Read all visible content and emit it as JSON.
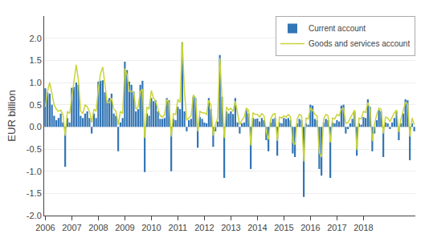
{
  "chart_data": {
    "type": "bar",
    "ylabel": "EUR billion",
    "categories": [
      "2006",
      null,
      null,
      null,
      null,
      null,
      null,
      null,
      null,
      null,
      null,
      null,
      "2007",
      null,
      null,
      null,
      null,
      null,
      null,
      null,
      null,
      null,
      null,
      null,
      "2008",
      null,
      null,
      null,
      null,
      null,
      null,
      null,
      null,
      null,
      null,
      null,
      "2009",
      null,
      null,
      null,
      null,
      null,
      null,
      null,
      null,
      null,
      null,
      null,
      "2010",
      null,
      null,
      null,
      null,
      null,
      null,
      null,
      null,
      null,
      null,
      null,
      "2011",
      null,
      null,
      null,
      null,
      null,
      null,
      null,
      null,
      null,
      null,
      null,
      "2012",
      null,
      null,
      null,
      null,
      null,
      null,
      null,
      null,
      null,
      null,
      null,
      "2013",
      null,
      null,
      null,
      null,
      null,
      null,
      null,
      null,
      null,
      null,
      null,
      "2014",
      null,
      null,
      null,
      null,
      null,
      null,
      null,
      null,
      null,
      null,
      null,
      "2015",
      null,
      null,
      null,
      null,
      null,
      null,
      null,
      null,
      null,
      null,
      null,
      "2016",
      null,
      null,
      null,
      null,
      null,
      null,
      null,
      null,
      null,
      null,
      null,
      "2017",
      null,
      null,
      null,
      null,
      null,
      null,
      null,
      null,
      null,
      null,
      null,
      "2018",
      null,
      null,
      null,
      null,
      null,
      null,
      null,
      null,
      null,
      null,
      null,
      null,
      null,
      null,
      null,
      null,
      null,
      null,
      null,
      null,
      null,
      null,
      null
    ],
    "series": [
      {
        "name": "Current account",
        "type": "bar",
        "color": "#3375b5",
        "values": [
          0.87,
          0.78,
          0.75,
          0.5,
          0.25,
          0.15,
          0.2,
          0.3,
          0.1,
          -0.9,
          0.2,
          0.1,
          0.88,
          0.9,
          1.0,
          0.95,
          0.25,
          0.2,
          0.3,
          0.35,
          0.2,
          -0.15,
          0.3,
          0.2,
          1.02,
          1.04,
          1.05,
          0.78,
          0.6,
          0.65,
          0.75,
          0.3,
          0.25,
          -0.55,
          0.1,
          0.2,
          1.47,
          1.28,
          1.02,
          0.95,
          0.8,
          0.35,
          0.4,
          0.95,
          1.04,
          -1.02,
          0.3,
          0.25,
          0.65,
          0.58,
          0.6,
          0.35,
          0.18,
          0.18,
          0.2,
          0.65,
          0.6,
          -1.0,
          0.18,
          0.15,
          0.45,
          0.4,
          1.9,
          0.35,
          -0.1,
          0.15,
          0.18,
          0.68,
          0.65,
          -0.47,
          0.22,
          0.18,
          0.1,
          0.08,
          0.65,
          0.4,
          -0.45,
          -0.1,
          0.12,
          1.62,
          0.68,
          -1.15,
          0.35,
          0.3,
          0.35,
          0.29,
          0.65,
          0.1,
          -0.15,
          0.08,
          0.1,
          0.38,
          0.3,
          -0.95,
          0.2,
          0.18,
          0.19,
          0.12,
          0.2,
          0.15,
          -0.3,
          -0.55,
          0.1,
          0.18,
          0.2,
          -0.65,
          0.1,
          0.08,
          0.2,
          0.18,
          0.2,
          0.15,
          -0.6,
          -0.68,
          0.08,
          0.18,
          0.15,
          -1.58,
          0.08,
          0.05,
          0.5,
          0.48,
          0.18,
          0.15,
          -0.95,
          -1.1,
          0.1,
          0.18,
          0.15,
          -1.15,
          0.1,
          0.08,
          0.15,
          0.12,
          0.48,
          0.5,
          -0.15,
          -0.05,
          0.08,
          0.18,
          0.35,
          -0.65,
          0.08,
          0.05,
          0.22,
          0.2,
          0.62,
          0.45,
          -0.55,
          -0.15,
          0.15,
          0.38,
          0.35,
          -0.68,
          0.1,
          0.08,
          -0.05,
          0.1,
          0.2,
          0.35,
          -0.3,
          0.08,
          0.3,
          0.62,
          0.6,
          -0.75,
          0.08,
          -0.1
        ]
      },
      {
        "name": "Goods and services account",
        "type": "line",
        "color": "#c8d439",
        "values": [
          0.45,
          0.8,
          1.0,
          0.75,
          0.5,
          0.4,
          0.35,
          0.38,
          0.28,
          -0.2,
          0.35,
          0.3,
          0.7,
          1.05,
          1.4,
          1.05,
          0.35,
          0.3,
          0.5,
          0.45,
          0.35,
          0.1,
          0.4,
          0.35,
          0.85,
          1.2,
          1.35,
          0.95,
          0.55,
          0.55,
          0.65,
          0.4,
          0.35,
          0.05,
          0.35,
          0.3,
          1.32,
          1.18,
          0.8,
          0.8,
          0.78,
          0.4,
          0.45,
          0.8,
          0.85,
          -0.25,
          0.45,
          0.4,
          0.82,
          0.65,
          0.58,
          0.4,
          0.25,
          0.22,
          0.28,
          0.62,
          0.55,
          -0.22,
          0.3,
          0.28,
          0.62,
          0.55,
          1.92,
          0.78,
          0.15,
          0.2,
          0.25,
          0.72,
          0.65,
          -0.1,
          0.35,
          0.32,
          0.32,
          0.28,
          0.6,
          0.48,
          -0.2,
          0.05,
          0.2,
          1.55,
          0.68,
          -0.25,
          0.45,
          0.38,
          0.42,
          0.35,
          0.58,
          0.28,
          0.05,
          0.15,
          0.22,
          0.42,
          0.38,
          -0.42,
          0.32,
          0.28,
          0.28,
          0.22,
          0.3,
          0.25,
          -0.1,
          -0.28,
          0.18,
          0.28,
          0.3,
          -0.32,
          0.22,
          0.2,
          0.25,
          0.22,
          0.28,
          0.22,
          -0.35,
          -0.4,
          0.18,
          0.28,
          0.25,
          -0.78,
          0.2,
          0.18,
          0.42,
          0.38,
          0.28,
          0.25,
          -0.58,
          -0.68,
          0.18,
          0.28,
          0.25,
          -0.35,
          0.2,
          0.18,
          0.28,
          0.25,
          0.4,
          0.42,
          0.08,
          0.1,
          0.2,
          0.3,
          0.38,
          -0.52,
          0.2,
          0.18,
          0.35,
          0.32,
          0.55,
          0.4,
          -0.32,
          0.05,
          0.28,
          0.42,
          0.4,
          -0.15,
          0.22,
          0.2,
          0.12,
          0.22,
          0.32,
          0.38,
          -0.12,
          0.18,
          0.38,
          0.55,
          0.52,
          -0.22,
          0.2,
          0.05
        ]
      }
    ],
    "ylim": [
      -2.0,
      2.5
    ],
    "yticks": [
      {
        "value": -2.0,
        "label": "-2.0"
      },
      -1.5,
      {
        "value": -1.0,
        "label": "-1.0"
      },
      -0.5,
      {
        "value": 0.0,
        "label": "0.0"
      },
      0.5,
      {
        "value": 1.0,
        "label": "1.0"
      },
      1.5,
      {
        "value": 2.0,
        "label": "2.0"
      }
    ],
    "grid": true,
    "legend": "upper right"
  }
}
